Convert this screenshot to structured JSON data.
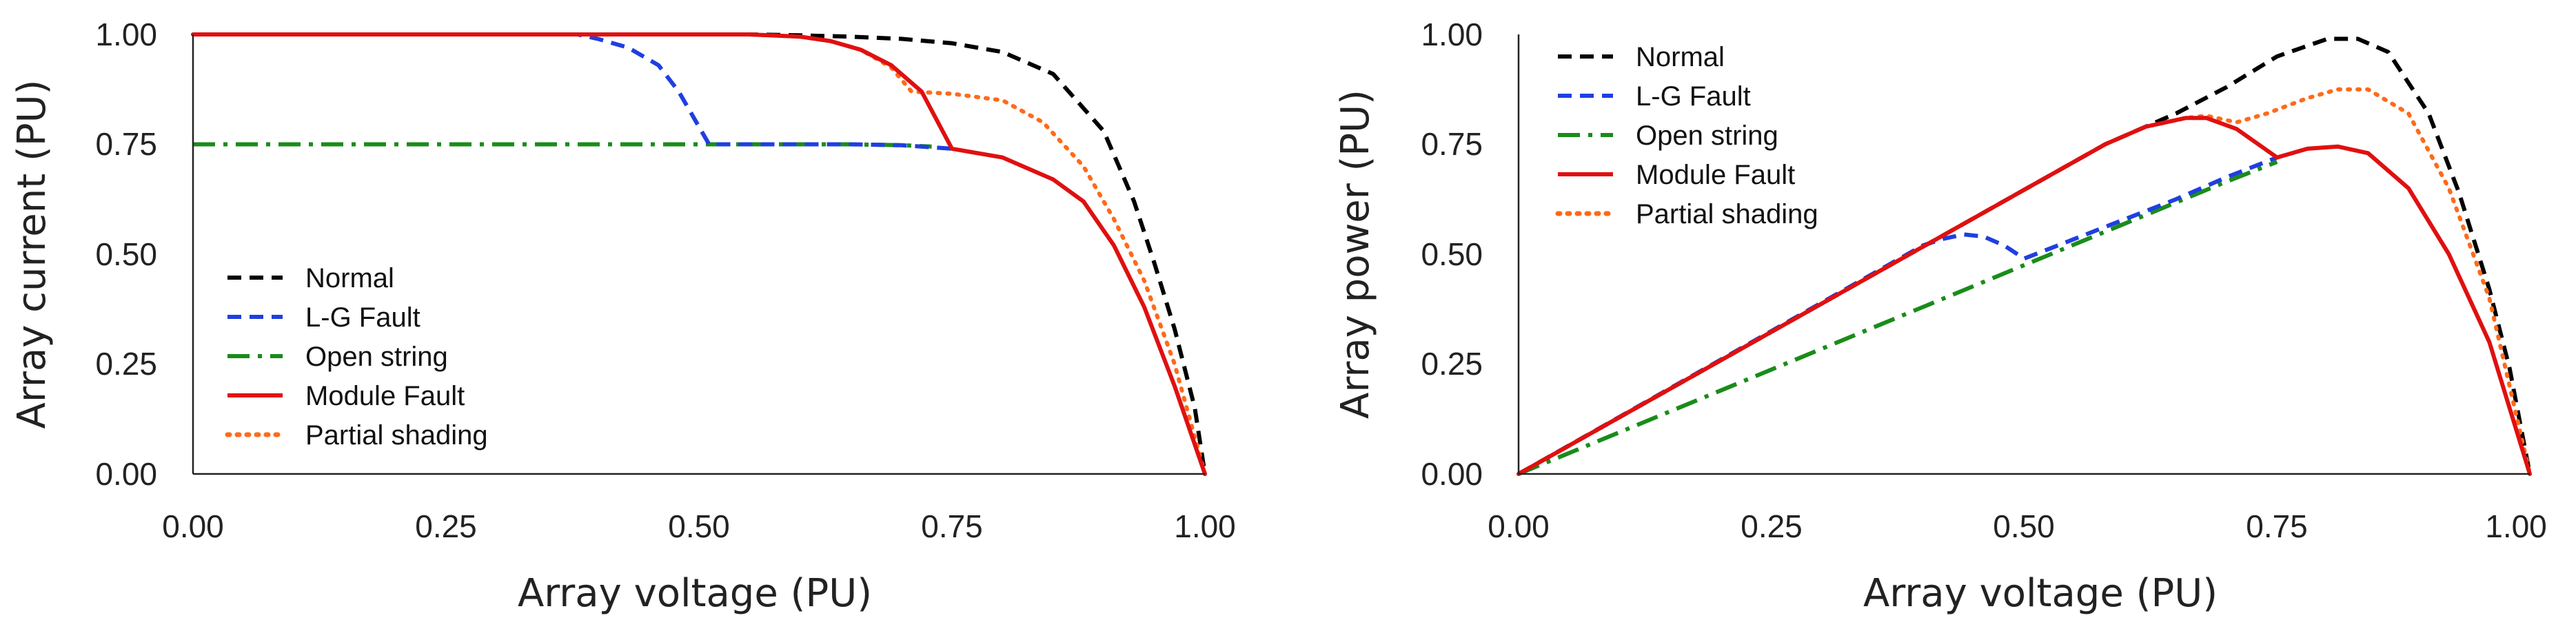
{
  "chart_data": [
    {
      "type": "line",
      "id": "iv",
      "title": "",
      "xlabel": "Array voltage (PU)",
      "ylabel": "Array current  (PU)",
      "xlim": [
        0,
        1
      ],
      "ylim": [
        0,
        1
      ],
      "xticks": [
        "0.00",
        "0.25",
        "0.50",
        "0.75",
        "1.00"
      ],
      "yticks": [
        "0.00",
        "0.25",
        "0.50",
        "0.75",
        "1.00"
      ],
      "grid": false,
      "legend": "lower-left",
      "series": [
        {
          "name": "Normal",
          "color": "#000000",
          "dash": "dashed",
          "x": [
            0,
            0.55,
            0.6,
            0.65,
            0.7,
            0.75,
            0.8,
            0.85,
            0.9,
            0.93,
            0.95,
            0.97,
            0.99,
            1.0
          ],
          "y": [
            1.0,
            1.0,
            0.998,
            0.995,
            0.99,
            0.98,
            0.96,
            0.91,
            0.78,
            0.62,
            0.48,
            0.33,
            0.15,
            0.0
          ]
        },
        {
          "name": "L-G Fault",
          "color": "#1f3fe0",
          "dash": "dashed",
          "x": [
            0,
            0.38,
            0.4,
            0.43,
            0.46,
            0.48,
            0.5,
            0.51,
            0.55,
            0.6,
            0.65,
            0.7,
            0.75
          ],
          "y": [
            1.0,
            1.0,
            0.99,
            0.97,
            0.93,
            0.87,
            0.79,
            0.75,
            0.75,
            0.75,
            0.75,
            0.748,
            0.74
          ]
        },
        {
          "name": "Open string",
          "color": "#1a8c1a",
          "dash": "dashdot",
          "x": [
            0,
            0.1,
            0.2,
            0.3,
            0.4,
            0.5,
            0.6,
            0.65,
            0.7,
            0.73
          ],
          "y": [
            0.75,
            0.75,
            0.75,
            0.75,
            0.75,
            0.75,
            0.75,
            0.75,
            0.748,
            0.745
          ]
        },
        {
          "name": "Module Fault",
          "color": "#e01010",
          "dash": "solid",
          "x": [
            0,
            0.55,
            0.6,
            0.63,
            0.66,
            0.69,
            0.72,
            0.75,
            0.8,
            0.85,
            0.88,
            0.91,
            0.94,
            0.97,
            1.0
          ],
          "y": [
            1.0,
            1.0,
            0.995,
            0.985,
            0.965,
            0.93,
            0.87,
            0.74,
            0.72,
            0.67,
            0.62,
            0.52,
            0.38,
            0.2,
            0.0
          ]
        },
        {
          "name": "Partial shading",
          "color": "#ff6a1a",
          "dash": "dotted",
          "x": [
            0,
            0.55,
            0.6,
            0.63,
            0.66,
            0.69,
            0.71,
            0.75,
            0.8,
            0.84,
            0.88,
            0.91,
            0.94,
            0.97,
            1.0
          ],
          "y": [
            1.0,
            1.0,
            0.995,
            0.985,
            0.965,
            0.925,
            0.87,
            0.865,
            0.85,
            0.8,
            0.7,
            0.58,
            0.44,
            0.25,
            0.0
          ]
        }
      ]
    },
    {
      "type": "line",
      "id": "pv",
      "title": "",
      "xlabel": "Array voltage  (PU)",
      "ylabel": "Array  power  (PU)",
      "xlim": [
        0,
        1
      ],
      "ylim": [
        0,
        1
      ],
      "xticks": [
        "0.00",
        "0.25",
        "0.50",
        "0.75",
        "1.00"
      ],
      "yticks": [
        "0.00",
        "0.25",
        "0.50",
        "0.75",
        "1.00"
      ],
      "grid": false,
      "legend": "top-left",
      "series": [
        {
          "name": "Normal",
          "color": "#000000",
          "dash": "dashed",
          "x": [
            0,
            0.58,
            0.65,
            0.7,
            0.75,
            0.8,
            0.83,
            0.86,
            0.9,
            0.93,
            0.96,
            0.98,
            1.0
          ],
          "y": [
            0,
            0.75,
            0.82,
            0.88,
            0.95,
            0.99,
            0.99,
            0.96,
            0.82,
            0.64,
            0.42,
            0.24,
            0.0
          ]
        },
        {
          "name": "L-G Fault",
          "color": "#1f3fe0",
          "dash": "dashed",
          "x": [
            0,
            0.4,
            0.42,
            0.44,
            0.46,
            0.48,
            0.5,
            0.55,
            0.6,
            0.65,
            0.7,
            0.75
          ],
          "y": [
            0,
            0.52,
            0.535,
            0.545,
            0.54,
            0.52,
            0.49,
            0.535,
            0.58,
            0.625,
            0.675,
            0.72
          ]
        },
        {
          "name": "Open string",
          "color": "#1a8c1a",
          "dash": "dashdot",
          "x": [
            0,
            0.1,
            0.2,
            0.3,
            0.4,
            0.5,
            0.6,
            0.7,
            0.75
          ],
          "y": [
            0,
            0.095,
            0.19,
            0.285,
            0.38,
            0.475,
            0.57,
            0.665,
            0.71
          ]
        },
        {
          "name": "Module Fault",
          "color": "#e01010",
          "dash": "solid",
          "x": [
            0,
            0.58,
            0.62,
            0.66,
            0.68,
            0.71,
            0.75,
            0.78,
            0.81,
            0.84,
            0.88,
            0.92,
            0.96,
            1.0
          ],
          "y": [
            0,
            0.75,
            0.79,
            0.81,
            0.81,
            0.785,
            0.72,
            0.74,
            0.745,
            0.73,
            0.65,
            0.5,
            0.3,
            0.0
          ]
        },
        {
          "name": "Partial shading",
          "color": "#ff6a1a",
          "dash": "dotted",
          "x": [
            0,
            0.58,
            0.62,
            0.66,
            0.68,
            0.71,
            0.74,
            0.78,
            0.81,
            0.84,
            0.88,
            0.92,
            0.96,
            1.0
          ],
          "y": [
            0,
            0.75,
            0.79,
            0.81,
            0.815,
            0.8,
            0.82,
            0.855,
            0.875,
            0.875,
            0.82,
            0.65,
            0.4,
            0.0
          ]
        }
      ]
    }
  ]
}
